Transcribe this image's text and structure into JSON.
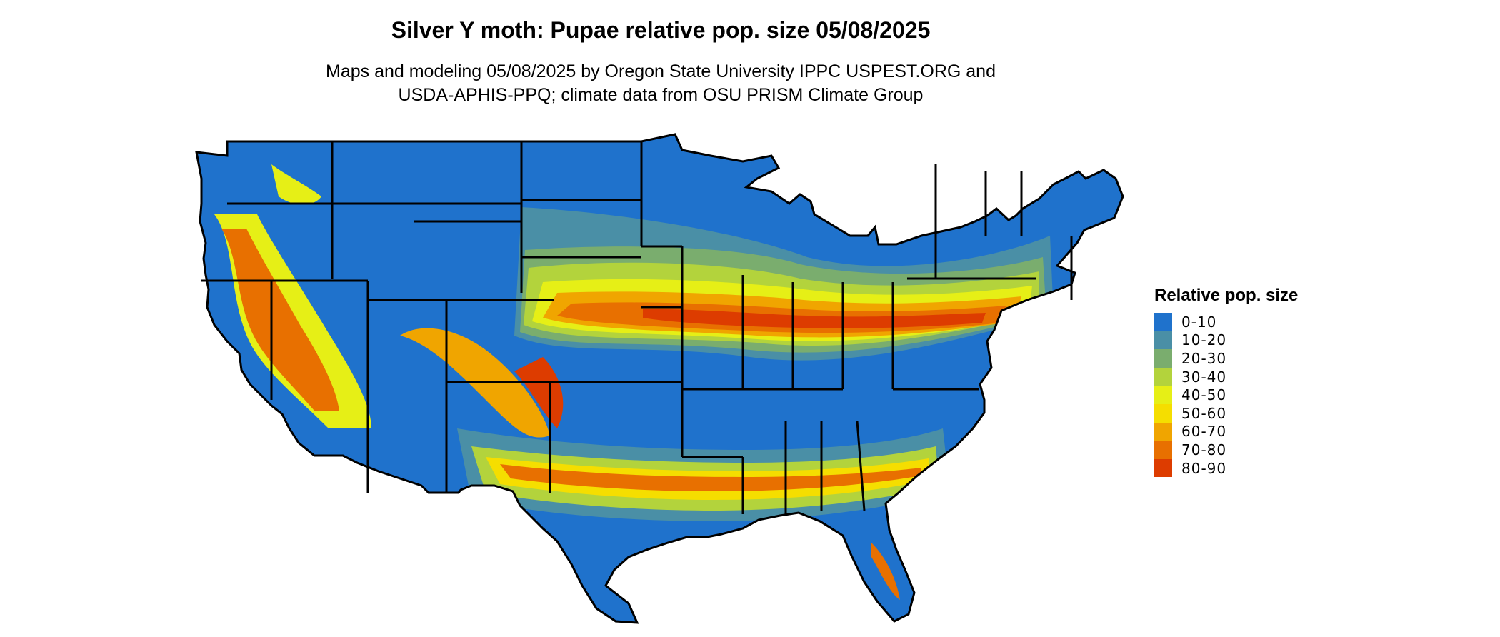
{
  "title": "Silver Y moth: Pupae relative pop. size 05/08/2025",
  "subtitle_lines": [
    "Maps and modeling 05/08/2025 by Oregon State University IPPC USPEST.ORG and",
    "USDA-APHIS-PPQ; climate data from OSU PRISM Climate Group"
  ],
  "legend": {
    "title": "Relative pop. size",
    "items": [
      {
        "label": "0-10",
        "color": "#1f72cc"
      },
      {
        "label": "10-20",
        "color": "#4a8fa6"
      },
      {
        "label": "20-30",
        "color": "#7aad6e"
      },
      {
        "label": "30-40",
        "color": "#b3d33c"
      },
      {
        "label": "40-50",
        "color": "#e6ef16"
      },
      {
        "label": "50-60",
        "color": "#f5de00"
      },
      {
        "label": "60-70",
        "color": "#f0a500"
      },
      {
        "label": "70-80",
        "color": "#e87000"
      },
      {
        "label": "80-90",
        "color": "#dd3c00"
      }
    ]
  },
  "colors": {
    "background": "#ffffff",
    "state_borders": "#000000",
    "base_fill": "#1f72cc"
  }
}
